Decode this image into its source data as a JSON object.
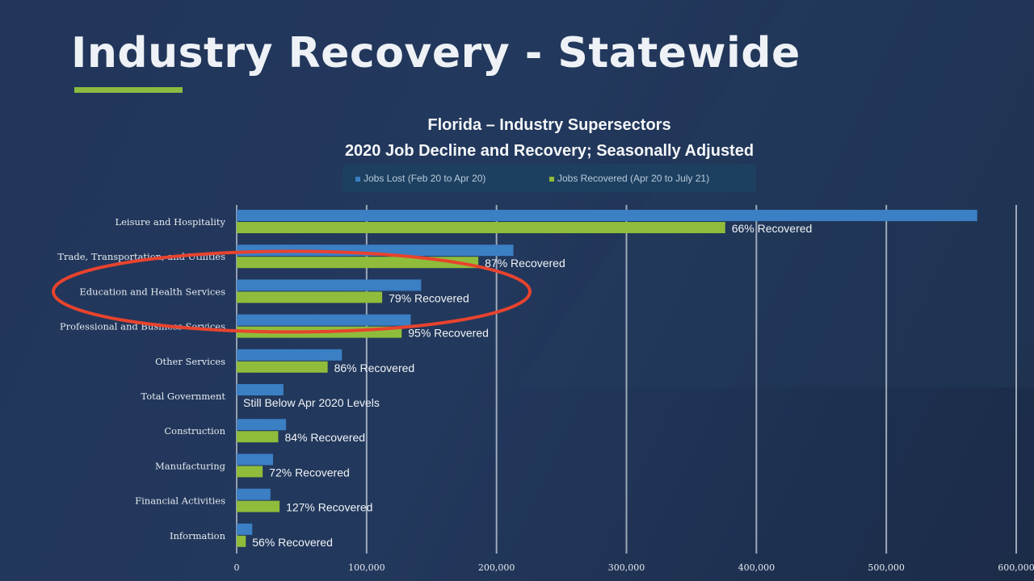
{
  "slide": {
    "title": "Industry Recovery - Statewide",
    "accent_color": "#8dbb3f"
  },
  "chart_data": {
    "type": "bar",
    "orientation": "horizontal",
    "title": "Florida – Industry Supersectors",
    "subtitle": "2020 Job Decline and Recovery; Seasonally Adjusted",
    "categories": [
      "Leisure and Hospitality",
      "Trade, Transportation, and Utilities",
      "Education and Health Services",
      "Professional and Business Services",
      "Other Services",
      "Total Government",
      "Construction",
      "Manufacturing",
      "Financial Activities",
      "Information"
    ],
    "series": [
      {
        "name": "Jobs Lost (Feb 20 to Apr 20)",
        "color": "#3b7fc4",
        "values": [
          570000,
          213000,
          142000,
          134000,
          81000,
          36000,
          38000,
          28000,
          26000,
          12000
        ]
      },
      {
        "name": "Jobs Recovered (Apr 20 to July 21)",
        "color": "#8fbd3b",
        "values": [
          376000,
          186000,
          112000,
          127000,
          70000,
          0,
          32000,
          20000,
          33000,
          7000
        ]
      }
    ],
    "data_labels": [
      "66% Recovered",
      "87% Recovered",
      "79% Recovered",
      "95% Recovered",
      "86% Recovered",
      "Still Below Apr 2020 Levels",
      "84% Recovered",
      "72% Recovered",
      "127% Recovered",
      "56% Recovered"
    ],
    "xlim": [
      0,
      600000
    ],
    "xticks": [
      "0",
      "100,000",
      "200,000",
      "300,000",
      "400,000",
      "500,000",
      "600,000"
    ],
    "grid": true,
    "legend_position": "top",
    "annotation": {
      "type": "ellipse",
      "color": "#e8432e",
      "highlighted_category": "Education and Health Services"
    }
  }
}
